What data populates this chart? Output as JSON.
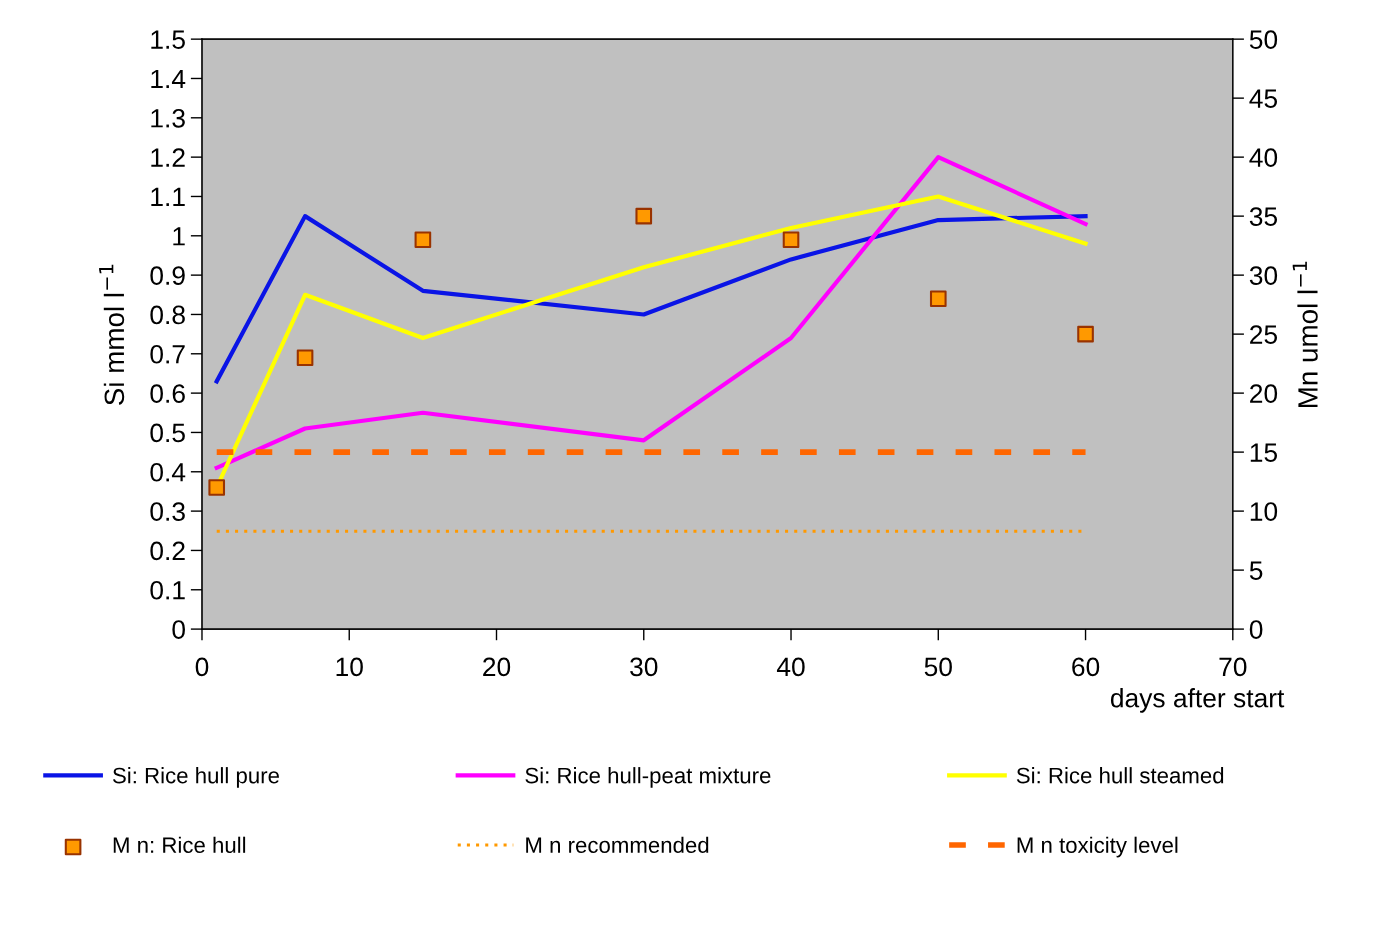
{
  "chart_data": {
    "type": "line",
    "xlabel": "days after start",
    "ylabel": "Si mmol l$^{−1}$",
    "y2label": "Mn umol l$^{−1}$",
    "xlim": [
      0,
      70
    ],
    "xticks": [
      0,
      10,
      20,
      30,
      40,
      50,
      60,
      70
    ],
    "ylim": [
      0,
      1.5
    ],
    "yticks": [
      0,
      0.1,
      0.2,
      0.3,
      0.4,
      0.5,
      0.6,
      0.7,
      0.8,
      0.9,
      1,
      1.1,
      1.2,
      1.3,
      1.4,
      1.5
    ],
    "y2lim": [
      0,
      50
    ],
    "y2ticks": [
      0,
      5,
      10,
      15,
      20,
      25,
      30,
      35,
      40,
      45,
      50
    ],
    "grid": false,
    "legend": "bottom",
    "series": [
      {
        "name": "Si: Rice hull pure",
        "color": "#0a14e6",
        "x": [
          1,
          7,
          15,
          30,
          40,
          50,
          60
        ],
        "values": [
          0.63,
          1.05,
          0.86,
          0.8,
          0.94,
          1.04,
          1.05
        ]
      },
      {
        "name": "Si: Rice hull-peat mixture",
        "color": "#ff00ff",
        "x": [
          1,
          7,
          15,
          30,
          40,
          50,
          60
        ],
        "values": [
          0.41,
          0.51,
          0.55,
          0.48,
          0.74,
          1.2,
          1.03
        ]
      },
      {
        "name": "Si: Rice hull steamed",
        "color": "#ffff00",
        "x": [
          1,
          7,
          15,
          30,
          40,
          50,
          60
        ],
        "values": [
          0.36,
          0.85,
          0.74,
          0.92,
          1.02,
          1.1,
          0.98
        ]
      },
      {
        "name": "M n: Rice hull",
        "type": "scatter",
        "axis": "y2",
        "marker": "square",
        "color": "#ff9900",
        "x": [
          1,
          7,
          15,
          30,
          40,
          50,
          60
        ],
        "values": [
          12,
          23,
          33,
          35,
          33,
          28,
          25
        ]
      },
      {
        "name": "M n recommended",
        "axis": "y2",
        "line_style": "dotted",
        "color": "#ff9900",
        "x": [
          1,
          60
        ],
        "values": [
          8.3,
          8.3
        ]
      },
      {
        "name": "M n toxicity level",
        "axis": "y2",
        "line_style": "dashed",
        "color": "#ff6600",
        "x": [
          1,
          60
        ],
        "values": [
          15,
          15
        ]
      }
    ]
  }
}
